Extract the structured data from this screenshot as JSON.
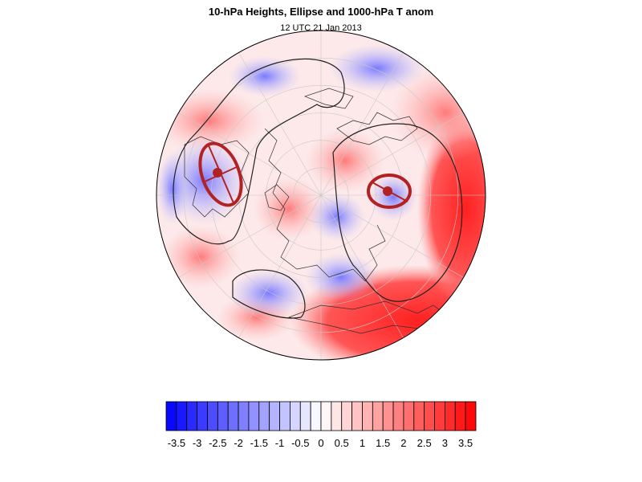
{
  "header": {
    "title": "10-hPa Heights, Ellipse and 1000-hPa T anom",
    "subtitle": "12 UTC 21 Jan 2013"
  },
  "colorbar": {
    "levels": [
      -3.75,
      -3.5,
      -3.25,
      -3,
      -2.75,
      -2.5,
      -2.25,
      -2,
      -1.75,
      -1.5,
      -1.25,
      -1,
      -0.75,
      -0.5,
      -0.25,
      0,
      0.25,
      0.5,
      0.75,
      1,
      1.25,
      1.5,
      1.75,
      2,
      2.25,
      2.5,
      2.75,
      3,
      3.25,
      3.5,
      3.75
    ],
    "tick_labels": [
      "-3.5",
      "-3",
      "-2.5",
      "-2",
      "-1.5",
      "-1",
      "-0.5",
      "0",
      "0.5",
      "1",
      "1.5",
      "2",
      "2.5",
      "3",
      "3.5"
    ],
    "colors": {
      "negative_end": "#0000ff",
      "neutral": "#ffffff",
      "positive_end": "#ff0000"
    }
  },
  "map": {
    "projection": "orthographic north-polar",
    "ellipse_color": "#b22222",
    "contour_color": "#222222"
  }
}
